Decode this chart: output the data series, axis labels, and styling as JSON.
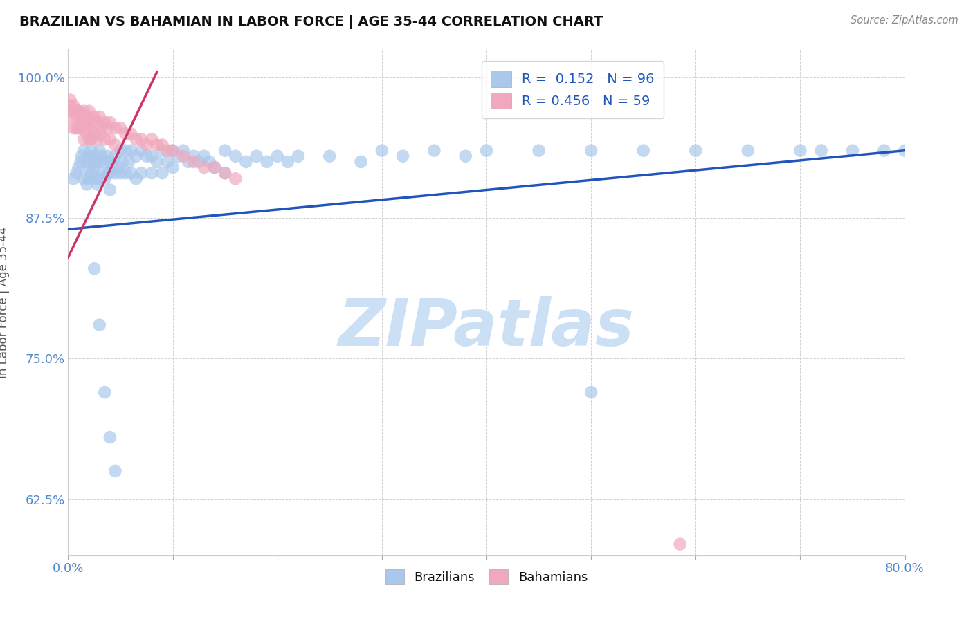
{
  "title": "BRAZILIAN VS BAHAMIAN IN LABOR FORCE | AGE 35-44 CORRELATION CHART",
  "source_text": "Source: ZipAtlas.com",
  "ylabel": "In Labor Force | Age 35-44",
  "xlim": [
    0.0,
    0.8
  ],
  "ylim": [
    0.575,
    1.025
  ],
  "ytick_vals": [
    0.625,
    0.75,
    0.875,
    1.0
  ],
  "ytick_labels": [
    "62.5%",
    "75.0%",
    "87.5%",
    "100.0%"
  ],
  "xtick_vals": [
    0.0,
    0.1,
    0.2,
    0.3,
    0.4,
    0.5,
    0.6,
    0.7,
    0.8
  ],
  "blue_color": "#aac8ec",
  "pink_color": "#f0a8bc",
  "blue_line_color": "#2255bb",
  "pink_line_color": "#cc3366",
  "axis_color": "#5588cc",
  "grid_color": "#cccccc",
  "title_color": "#111111",
  "source_color": "#888888",
  "watermark_color": "#cce0f5",
  "background_color": "#ffffff",
  "blue_legend_label": "R =  0.152   N = 96",
  "pink_legend_label": "R = 0.456   N = 59",
  "blue_bottom_label": "Brazilians",
  "pink_bottom_label": "Bahamians",
  "watermark_text": "ZIPatlas",
  "blue_trend_x0": 0.0,
  "blue_trend_y0": 0.865,
  "blue_trend_x1": 0.8,
  "blue_trend_y1": 0.935,
  "pink_trend_x0": 0.0,
  "pink_trend_y0": 0.84,
  "pink_trend_x1": 0.085,
  "pink_trend_y1": 1.005,
  "blue_scatter_x": [
    0.005,
    0.008,
    0.01,
    0.012,
    0.013,
    0.015,
    0.015,
    0.018,
    0.018,
    0.02,
    0.02,
    0.02,
    0.022,
    0.022,
    0.025,
    0.025,
    0.025,
    0.028,
    0.028,
    0.03,
    0.03,
    0.03,
    0.032,
    0.032,
    0.035,
    0.035,
    0.038,
    0.038,
    0.04,
    0.04,
    0.04,
    0.042,
    0.045,
    0.045,
    0.048,
    0.05,
    0.05,
    0.052,
    0.055,
    0.055,
    0.058,
    0.06,
    0.06,
    0.065,
    0.065,
    0.07,
    0.07,
    0.075,
    0.08,
    0.08,
    0.085,
    0.09,
    0.09,
    0.095,
    0.1,
    0.1,
    0.105,
    0.11,
    0.115,
    0.12,
    0.125,
    0.13,
    0.135,
    0.14,
    0.15,
    0.15,
    0.16,
    0.17,
    0.18,
    0.19,
    0.2,
    0.21,
    0.22,
    0.25,
    0.28,
    0.3,
    0.32,
    0.35,
    0.38,
    0.4,
    0.45,
    0.5,
    0.55,
    0.6,
    0.65,
    0.7,
    0.72,
    0.75,
    0.78,
    0.8,
    0.025,
    0.03,
    0.035,
    0.04,
    0.045,
    0.5
  ],
  "blue_scatter_y": [
    0.91,
    0.915,
    0.92,
    0.925,
    0.93,
    0.935,
    0.91,
    0.925,
    0.905,
    0.93,
    0.92,
    0.91,
    0.935,
    0.915,
    0.93,
    0.92,
    0.91,
    0.925,
    0.905,
    0.935,
    0.925,
    0.91,
    0.93,
    0.915,
    0.925,
    0.91,
    0.93,
    0.915,
    0.925,
    0.915,
    0.9,
    0.92,
    0.93,
    0.915,
    0.92,
    0.935,
    0.915,
    0.925,
    0.935,
    0.915,
    0.925,
    0.935,
    0.915,
    0.93,
    0.91,
    0.935,
    0.915,
    0.93,
    0.93,
    0.915,
    0.925,
    0.935,
    0.915,
    0.925,
    0.935,
    0.92,
    0.93,
    0.935,
    0.925,
    0.93,
    0.925,
    0.93,
    0.925,
    0.92,
    0.935,
    0.915,
    0.93,
    0.925,
    0.93,
    0.925,
    0.93,
    0.925,
    0.93,
    0.93,
    0.925,
    0.935,
    0.93,
    0.935,
    0.93,
    0.935,
    0.935,
    0.935,
    0.935,
    0.935,
    0.935,
    0.935,
    0.935,
    0.935,
    0.935,
    0.935,
    0.83,
    0.78,
    0.72,
    0.68,
    0.65,
    0.72
  ],
  "pink_scatter_x": [
    0.002,
    0.005,
    0.005,
    0.008,
    0.008,
    0.01,
    0.01,
    0.012,
    0.012,
    0.015,
    0.015,
    0.015,
    0.018,
    0.018,
    0.02,
    0.02,
    0.02,
    0.022,
    0.022,
    0.025,
    0.025,
    0.028,
    0.028,
    0.03,
    0.03,
    0.032,
    0.035,
    0.035,
    0.038,
    0.04,
    0.04,
    0.045,
    0.045,
    0.05,
    0.055,
    0.06,
    0.065,
    0.07,
    0.075,
    0.08,
    0.085,
    0.09,
    0.095,
    0.1,
    0.11,
    0.12,
    0.13,
    0.14,
    0.15,
    0.16,
    0.002,
    0.005,
    0.008,
    0.01,
    0.012,
    0.015,
    0.018,
    0.002,
    0.585
  ],
  "pink_scatter_y": [
    0.965,
    0.97,
    0.955,
    0.965,
    0.955,
    0.97,
    0.955,
    0.965,
    0.955,
    0.97,
    0.96,
    0.945,
    0.965,
    0.95,
    0.97,
    0.955,
    0.945,
    0.96,
    0.945,
    0.965,
    0.95,
    0.96,
    0.945,
    0.965,
    0.95,
    0.955,
    0.96,
    0.945,
    0.955,
    0.96,
    0.945,
    0.955,
    0.94,
    0.955,
    0.95,
    0.95,
    0.945,
    0.945,
    0.94,
    0.945,
    0.94,
    0.94,
    0.935,
    0.935,
    0.93,
    0.925,
    0.92,
    0.92,
    0.915,
    0.91,
    0.975,
    0.975,
    0.97,
    0.97,
    0.965,
    0.965,
    0.96,
    0.98,
    0.585
  ]
}
